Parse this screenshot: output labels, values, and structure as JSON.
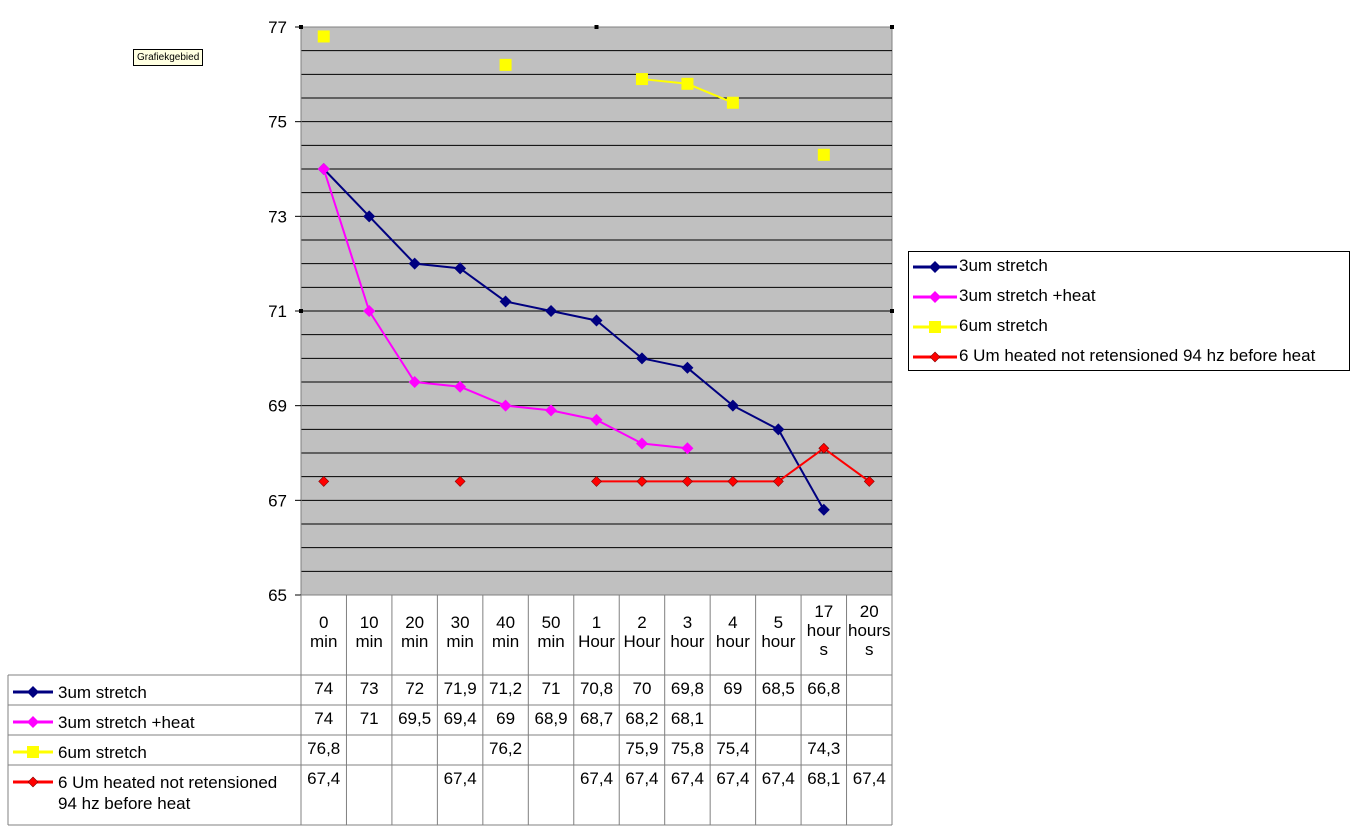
{
  "tooltip": "Grafiekgebied",
  "chart_data": {
    "type": "line",
    "ylim": [
      65,
      77
    ],
    "yticks": [
      "65",
      "67",
      "69",
      "71",
      "73",
      "75",
      "77"
    ],
    "grid": true,
    "legend_position": "right",
    "categories": [
      [
        "0",
        "min"
      ],
      [
        "10",
        "min"
      ],
      [
        "20",
        "min"
      ],
      [
        "30",
        "min"
      ],
      [
        "40",
        "min"
      ],
      [
        "50",
        "min"
      ],
      [
        "1",
        "Hour"
      ],
      [
        "2",
        "Hour"
      ],
      [
        "3",
        "hour"
      ],
      [
        "4",
        "hour"
      ],
      [
        "5",
        "hour"
      ],
      [
        "17",
        "hour",
        "s"
      ],
      [
        "20",
        "hours",
        "s"
      ]
    ],
    "series": [
      {
        "name": "3um stretch",
        "label_lines": [
          "3um stretch"
        ],
        "color": "#000080",
        "marker": "diamond",
        "values": [
          74,
          73,
          72,
          71.9,
          71.2,
          71,
          70.8,
          70,
          69.8,
          69,
          68.5,
          66.8,
          null
        ],
        "labels": [
          "74",
          "73",
          "72",
          "71,9",
          "71,2",
          "71",
          "70,8",
          "70",
          "69,8",
          "69",
          "68,5",
          "66,8",
          ""
        ]
      },
      {
        "name": "3um stretch +heat",
        "label_lines": [
          "3um stretch +heat"
        ],
        "color": "#ff00ff",
        "marker": "diamond",
        "values": [
          74,
          71,
          69.5,
          69.4,
          69,
          68.9,
          68.7,
          68.2,
          68.1,
          null,
          null,
          null,
          null
        ],
        "labels": [
          "74",
          "71",
          "69,5",
          "69,4",
          "69",
          "68,9",
          "68,7",
          "68,2",
          "68,1",
          "",
          "",
          "",
          ""
        ]
      },
      {
        "name": "6um stretch",
        "label_lines": [
          "6um stretch"
        ],
        "color": "#ffff00",
        "marker": "square",
        "values": [
          76.8,
          null,
          null,
          null,
          76.2,
          null,
          null,
          75.9,
          75.8,
          75.4,
          null,
          74.3,
          null
        ],
        "labels": [
          "76,8",
          "",
          "",
          "",
          "76,2",
          "",
          "",
          "75,9",
          "75,8",
          "75,4",
          "",
          "74,3",
          ""
        ]
      },
      {
        "name": "6 Um heated not retensioned 94 hz before heat",
        "label_lines": [
          "6 Um heated not retensioned",
          "94 hz before heat"
        ],
        "color": "#ff0000",
        "marker": "diamond-small",
        "values": [
          67.4,
          null,
          null,
          67.4,
          null,
          null,
          67.4,
          67.4,
          67.4,
          67.4,
          67.4,
          68.1,
          67.4
        ],
        "labels": [
          "67,4",
          "",
          "",
          "67,4",
          "",
          "",
          "67,4",
          "67,4",
          "67,4",
          "67,4",
          "67,4",
          "68,1",
          "67,4"
        ]
      }
    ]
  }
}
